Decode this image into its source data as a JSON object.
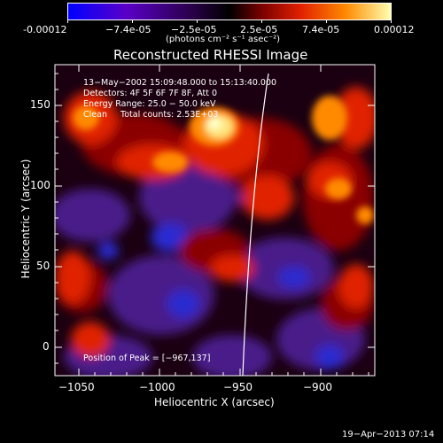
{
  "colorbar": {
    "ticks": [
      "-0.00012",
      "−7.4e-05",
      "−2.5e-05",
      "2.5e-05",
      "7.4e-05",
      "0.00012"
    ],
    "unit_label": "(photons cm⁻² s⁻¹ asec⁻²)",
    "colors": [
      "#0000ff",
      "#5a00c8",
      "#2a004a",
      "#000000",
      "#7a0000",
      "#e02000",
      "#ff8a00",
      "#ffffb0"
    ]
  },
  "plot": {
    "title": "Reconstructed RHESSI Image",
    "xlabel": "Heliocentric X (arcsec)",
    "ylabel": "Heliocentric Y (arcsec)",
    "xticks": [
      "−1050",
      "−1000",
      "−950",
      "−900"
    ],
    "yticks": [
      "150",
      "100",
      "50",
      "0"
    ],
    "overlay": {
      "line1": "13−May−2002 15:09:48.000 to 15:13:40.000",
      "line2": "Detectors: 4F 5F 6F 7F 8F, Att 0",
      "line3": "Energy Range: 25.0 − 50.0 keV",
      "line4": "Clean     Total counts: 2.53E+03",
      "peak": "Position of Peak = [−967,137]"
    }
  },
  "footer": {
    "timestamp": "19−Apr−2013 07:14"
  }
}
